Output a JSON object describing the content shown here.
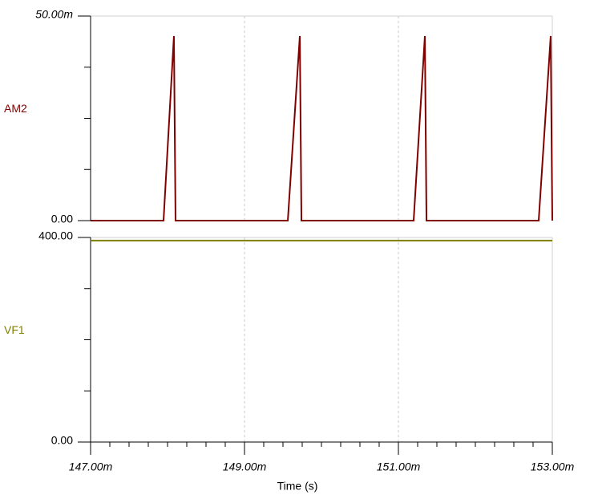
{
  "chart_data": [
    {
      "type": "line",
      "x": [
        0.147,
        0.147948,
        0.148083,
        0.148104,
        0.149563,
        0.149719,
        0.14974,
        0.151198,
        0.151344,
        0.151365,
        0.152823,
        0.152979,
        0.153
      ],
      "series": [
        {
          "name": "AM2",
          "color": "#800000",
          "values": [
            0,
            0,
            0.0451,
            0,
            0,
            0.0451,
            0,
            0,
            0.0451,
            0,
            0,
            0.0451,
            0
          ]
        }
      ],
      "xlim": [
        0.147,
        0.153
      ],
      "xticks": [
        {
          "value": 0.147,
          "label": "147.00m"
        },
        {
          "value": 0.149,
          "label": "149.00m"
        },
        {
          "value": 0.151,
          "label": "151.00m"
        },
        {
          "value": 0.153,
          "label": "153.00m"
        }
      ],
      "ylim": [
        0,
        0.05
      ],
      "yticks": [
        {
          "value": 0,
          "label": "0.00"
        },
        {
          "value": 0.05,
          "label": "50.00m"
        }
      ],
      "yminorticks": [
        0.0125,
        0.025,
        0.0375
      ],
      "grid": true
    },
    {
      "type": "line",
      "x": [
        0.147,
        0.153
      ],
      "series": [
        {
          "name": "VF1",
          "color": "#808000",
          "values": [
            394,
            394
          ]
        }
      ],
      "xlim": [
        0.147,
        0.153
      ],
      "xticks": [
        {
          "value": 0.147,
          "label": "147.00m"
        },
        {
          "value": 0.149,
          "label": "149.00m"
        },
        {
          "value": 0.151,
          "label": "151.00m"
        },
        {
          "value": 0.153,
          "label": "153.00m"
        }
      ],
      "xminorticks": [
        0.14725,
        0.1475,
        0.14775,
        0.148,
        0.14825,
        0.1485,
        0.14875,
        0.14925,
        0.1495,
        0.14975,
        0.15,
        0.15025,
        0.1505,
        0.15075,
        0.15125,
        0.1515,
        0.15175,
        0.152,
        0.15225,
        0.1525,
        0.15275
      ],
      "ylim": [
        0,
        400
      ],
      "yticks": [
        {
          "value": 0,
          "label": "0.00"
        },
        {
          "value": 400,
          "label": "400.00"
        }
      ],
      "yminorticks": [
        100,
        200,
        300
      ],
      "xlabel": "Time (s)",
      "grid": true
    }
  ]
}
